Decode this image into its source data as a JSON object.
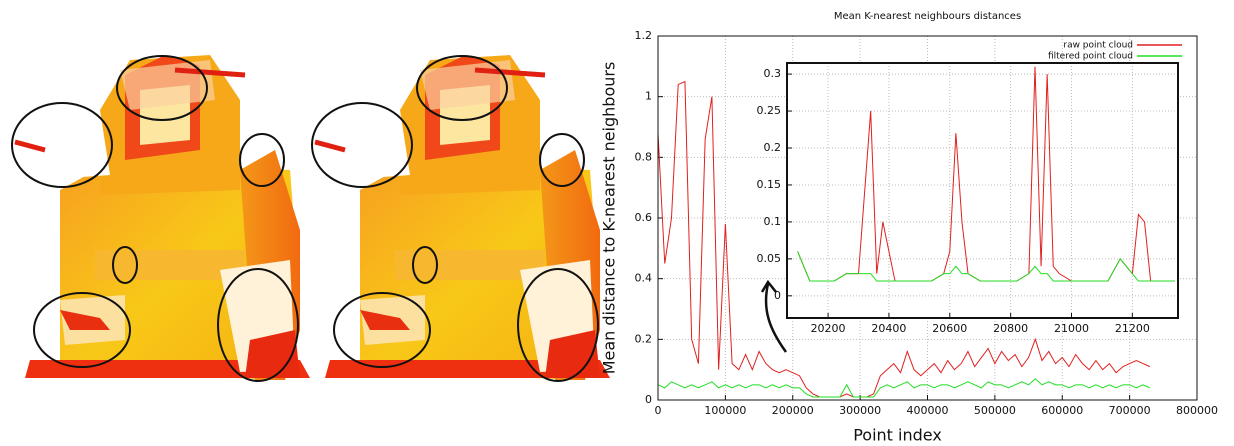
{
  "chart_data": [
    {
      "type": "line",
      "title": "Mean K-nearest neighbours distances",
      "x_label": "Point index",
      "y_label": "Mean distance to K-nearest neighbours",
      "x": [
        0,
        10000,
        20000,
        30000,
        40000,
        50000,
        60000,
        70000,
        80000,
        90000,
        100000,
        110000,
        120000,
        130000,
        140000,
        150000,
        160000,
        170000,
        180000,
        190000,
        200000,
        210000,
        220000,
        230000,
        240000,
        250000,
        260000,
        270000,
        280000,
        290000,
        300000,
        310000,
        320000,
        330000,
        340000,
        350000,
        360000,
        370000,
        380000,
        390000,
        400000,
        410000,
        420000,
        430000,
        440000,
        450000,
        460000,
        470000,
        480000,
        490000,
        500000,
        510000,
        520000,
        530000,
        540000,
        550000,
        560000,
        570000,
        580000,
        590000,
        600000,
        610000,
        620000,
        630000,
        640000,
        650000,
        660000,
        670000,
        680000,
        690000,
        700000,
        710000,
        720000,
        730000
      ],
      "series": [
        {
          "name": "raw point cloud",
          "color": "#e02020",
          "values": [
            0.88,
            0.45,
            0.6,
            1.04,
            1.05,
            0.2,
            0.12,
            0.86,
            1.0,
            0.1,
            0.58,
            0.12,
            0.1,
            0.15,
            0.1,
            0.16,
            0.12,
            0.1,
            0.09,
            0.1,
            0.09,
            0.08,
            0.04,
            0.02,
            0.01,
            0.01,
            0.01,
            0.01,
            0.02,
            0.01,
            0.01,
            0.01,
            0.02,
            0.08,
            0.1,
            0.12,
            0.09,
            0.16,
            0.1,
            0.08,
            0.1,
            0.12,
            0.09,
            0.13,
            0.1,
            0.12,
            0.16,
            0.11,
            0.14,
            0.17,
            0.12,
            0.16,
            0.13,
            0.15,
            0.11,
            0.14,
            0.2,
            0.13,
            0.16,
            0.12,
            0.14,
            0.11,
            0.15,
            0.12,
            0.1,
            0.13,
            0.1,
            0.12,
            0.09,
            0.11,
            0.12,
            0.13,
            0.12,
            0.11
          ]
        },
        {
          "name": "filtered point cloud",
          "color": "#22dd22",
          "values": [
            0.05,
            0.04,
            0.06,
            0.05,
            0.04,
            0.05,
            0.04,
            0.05,
            0.06,
            0.04,
            0.05,
            0.04,
            0.05,
            0.04,
            0.05,
            0.05,
            0.04,
            0.05,
            0.04,
            0.05,
            0.04,
            0.04,
            0.02,
            0.01,
            0.01,
            0.01,
            0.01,
            0.01,
            0.05,
            0.01,
            0.01,
            0.01,
            0.01,
            0.04,
            0.05,
            0.04,
            0.05,
            0.06,
            0.04,
            0.05,
            0.05,
            0.04,
            0.05,
            0.05,
            0.04,
            0.05,
            0.06,
            0.05,
            0.04,
            0.06,
            0.05,
            0.05,
            0.04,
            0.05,
            0.06,
            0.05,
            0.07,
            0.05,
            0.06,
            0.05,
            0.05,
            0.04,
            0.05,
            0.05,
            0.04,
            0.05,
            0.04,
            0.05,
            0.04,
            0.05,
            0.05,
            0.04,
            0.05,
            0.04
          ]
        }
      ],
      "xlim": [
        0,
        800000
      ],
      "xticks": [
        0,
        100000,
        200000,
        300000,
        400000,
        500000,
        600000,
        700000,
        800000
      ],
      "ylim": [
        0,
        1.2
      ],
      "yticks": [
        0,
        0.2,
        0.4,
        0.6,
        0.8,
        1,
        1.2
      ],
      "grid": true,
      "legend": "top-right"
    },
    {
      "type": "line",
      "x": [
        20100,
        20140,
        20180,
        20220,
        20260,
        20300,
        20340,
        20360,
        20380,
        20420,
        20460,
        20500,
        20540,
        20580,
        20600,
        20620,
        20640,
        20660,
        20700,
        20740,
        20780,
        20820,
        20860,
        20880,
        20900,
        20920,
        20940,
        20960,
        21000,
        21040,
        21080,
        21120,
        21160,
        21200,
        21220,
        21240,
        21260,
        21300,
        21340
      ],
      "series": [
        {
          "color": "#e02020",
          "values": [
            0.06,
            0.02,
            0.02,
            0.02,
            0.03,
            0.03,
            0.25,
            0.03,
            0.1,
            0.02,
            0.02,
            0.02,
            0.02,
            0.03,
            0.06,
            0.22,
            0.1,
            0.03,
            0.02,
            0.02,
            0.02,
            0.02,
            0.03,
            0.31,
            0.04,
            0.3,
            0.04,
            0.03,
            0.02,
            0.02,
            0.02,
            0.02,
            0.05,
            0.03,
            0.11,
            0.1,
            0.02,
            0.02,
            0.02
          ]
        },
        {
          "color": "#22dd22",
          "values": [
            0.06,
            0.02,
            0.02,
            0.02,
            0.03,
            0.03,
            0.03,
            0.02,
            0.02,
            0.02,
            0.02,
            0.02,
            0.02,
            0.03,
            0.03,
            0.04,
            0.03,
            0.03,
            0.02,
            0.02,
            0.02,
            0.02,
            0.03,
            0.04,
            0.03,
            0.03,
            0.02,
            0.02,
            0.02,
            0.02,
            0.02,
            0.02,
            0.05,
            0.03,
            0.02,
            0.02,
            0.02,
            0.02,
            0.02
          ]
        }
      ],
      "xlim": [
        20065,
        21350
      ],
      "xticks": [
        20200,
        20400,
        20600,
        20800,
        21000,
        21200
      ],
      "ylim": [
        -0.03,
        0.315
      ],
      "yticks": [
        0,
        0.05,
        0.1,
        0.15,
        0.2,
        0.25,
        0.3
      ],
      "grid": true
    }
  ]
}
